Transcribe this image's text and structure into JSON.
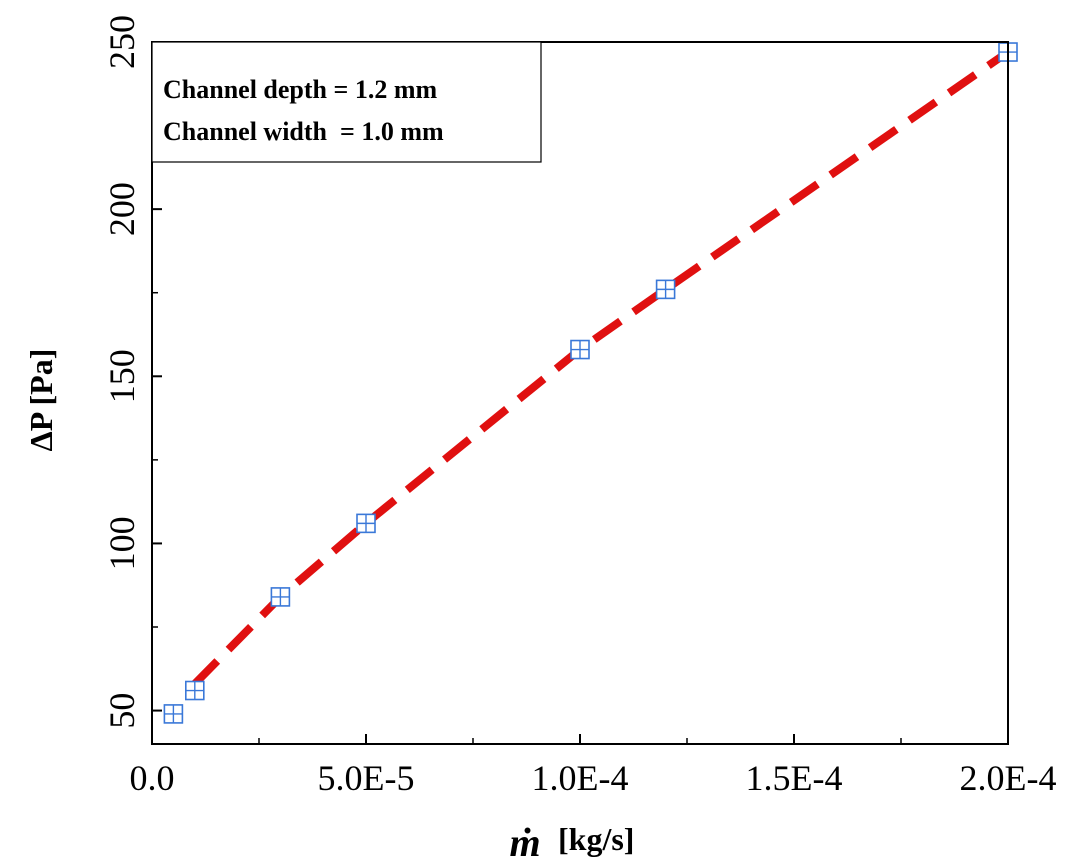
{
  "chart_data": {
    "type": "line",
    "title": "",
    "xlabel": "[kg/s]",
    "xlabel_symbol": "ṁ",
    "ylabel": "ΔP [Pa]",
    "xlim": [
      0,
      0.0002
    ],
    "ylim": [
      40,
      250
    ],
    "x_ticks": [
      0,
      5e-05,
      0.0001,
      0.00015,
      0.0002
    ],
    "x_tick_labels": [
      "0.0",
      "5.0E-5",
      "1.0E-4",
      "1.5E-4",
      "2.0E-4"
    ],
    "y_ticks": [
      50,
      100,
      150,
      200,
      250
    ],
    "y_tick_labels": [
      "50",
      "100",
      "150",
      "200",
      "250"
    ],
    "grid": false,
    "annotation": {
      "lines": [
        "Channel depth = 1.2 mm",
        "Channel width  = 1.0 mm"
      ],
      "placement": "top-left"
    },
    "series": [
      {
        "style": "dashed-line",
        "color": "#e01010",
        "x": [
          1e-05,
          3e-05,
          5e-05,
          0.0001,
          0.00012,
          0.0002
        ],
        "y": [
          58,
          84,
          106,
          158,
          176,
          247
        ]
      },
      {
        "style": "square-cross-markers",
        "color": "#3a78d8",
        "x": [
          5e-06,
          1e-05,
          3e-05,
          5e-05,
          0.0001,
          0.00012,
          0.0002
        ],
        "y": [
          49,
          56,
          84,
          106,
          158,
          176,
          247
        ]
      }
    ]
  }
}
